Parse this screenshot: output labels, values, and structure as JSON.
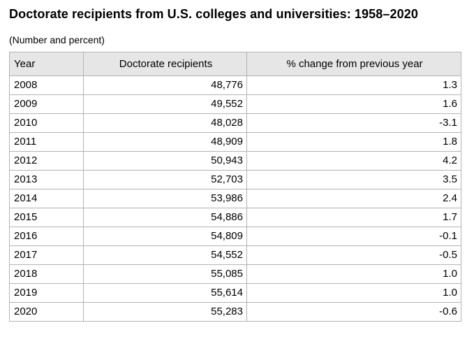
{
  "title": "Doctorate recipients from U.S. colleges and universities: 1958–2020",
  "subtitle": "(Number and percent)",
  "table": {
    "headers": [
      "Year",
      "Doctorate recipients",
      "% change from previous year"
    ],
    "rows": [
      [
        "2008",
        "48,776",
        "1.3"
      ],
      [
        "2009",
        "49,552",
        "1.6"
      ],
      [
        "2010",
        "48,028",
        "-3.1"
      ],
      [
        "2011",
        "48,909",
        "1.8"
      ],
      [
        "2012",
        "50,943",
        "4.2"
      ],
      [
        "2013",
        "52,703",
        "3.5"
      ],
      [
        "2014",
        "53,986",
        "2.4"
      ],
      [
        "2015",
        "54,886",
        "1.7"
      ],
      [
        "2016",
        "54,809",
        "-0.1"
      ],
      [
        "2017",
        "54,552",
        "-0.5"
      ],
      [
        "2018",
        "55,085",
        "1.0"
      ],
      [
        "2019",
        "55,614",
        "1.0"
      ],
      [
        "2020",
        "55,283",
        "-0.6"
      ]
    ]
  },
  "colors": {
    "header_background": "#e6e6e6",
    "border": "#b3b3b3"
  }
}
